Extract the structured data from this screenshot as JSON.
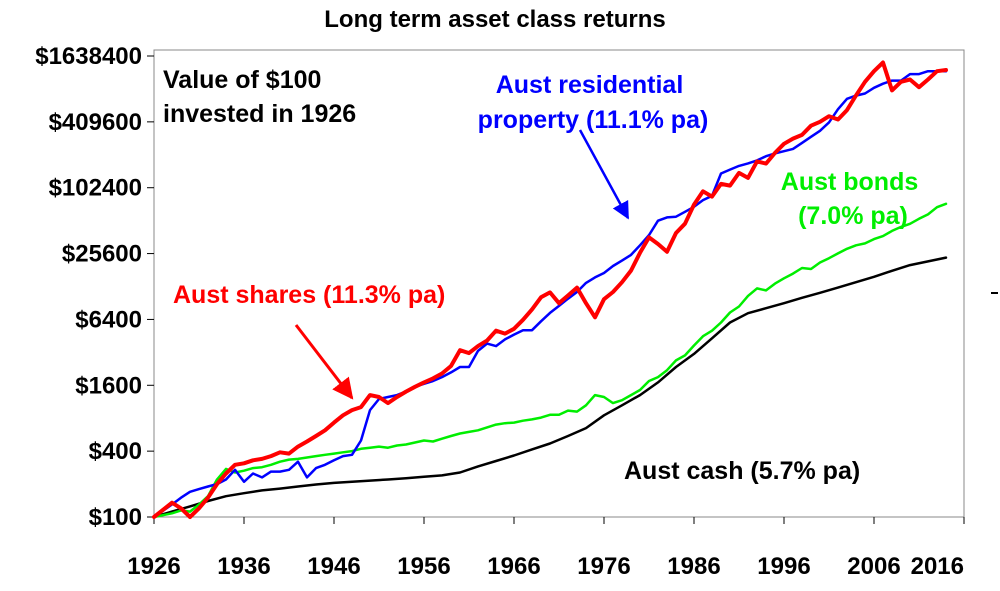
{
  "chart_data": {
    "type": "line",
    "title": "Long term asset class returns",
    "xlabel": "",
    "ylabel": "",
    "y_scale": "log",
    "xlim": [
      1926,
      2016
    ],
    "ylim": [
      100,
      1638400
    ],
    "x_ticks": [
      1926,
      1936,
      1946,
      1956,
      1966,
      1976,
      1986,
      1996,
      2006,
      2016
    ],
    "x_tick_labels": [
      "1926",
      "1936",
      "1946",
      "1956",
      "1966",
      "1976",
      "1986",
      "1996",
      "2006",
      "2016"
    ],
    "y_ticks": [
      100,
      400,
      1600,
      6400,
      25600,
      102400,
      409600,
      1638400
    ],
    "y_tick_labels": [
      "$100",
      "$400",
      "$1600",
      "$6400",
      "$25600",
      "$102400",
      "$409600",
      "$1638400"
    ],
    "grid": false,
    "legend": "none",
    "series": [
      {
        "name": "Aust shares (11.3% pa)",
        "color": "#ff0000",
        "x": [
          1926,
          1928,
          1929,
          1930,
          1931,
          1932,
          1933,
          1934,
          1935,
          1936,
          1937,
          1938,
          1939,
          1940,
          1941,
          1942,
          1943,
          1944,
          1945,
          1946,
          1947,
          1948,
          1949,
          1950,
          1951,
          1952,
          1953,
          1954,
          1955,
          1956,
          1957,
          1958,
          1959,
          1960,
          1961,
          1962,
          1963,
          1964,
          1965,
          1966,
          1967,
          1968,
          1969,
          1970,
          1971,
          1972,
          1973,
          1974,
          1975,
          1976,
          1977,
          1978,
          1979,
          1980,
          1981,
          1982,
          1983,
          1984,
          1985,
          1986,
          1987,
          1988,
          1989,
          1990,
          1991,
          1992,
          1993,
          1994,
          1995,
          1996,
          1997,
          1998,
          1999,
          2000,
          2001,
          2002,
          2003,
          2004,
          2005,
          2006,
          2007,
          2008,
          2009,
          2010,
          2011,
          2012,
          2013,
          2014
        ],
        "y": [
          100,
          135,
          120,
          100,
          120,
          150,
          200,
          250,
          300,
          310,
          330,
          340,
          360,
          390,
          380,
          440,
          490,
          550,
          620,
          730,
          850,
          950,
          1010,
          1300,
          1250,
          1100,
          1250,
          1400,
          1550,
          1700,
          1850,
          2050,
          2400,
          3350,
          3150,
          3650,
          4100,
          5050,
          4750,
          5250,
          6350,
          7900,
          10200,
          11300,
          9000,
          10600,
          12500,
          9000,
          6700,
          9800,
          11400,
          14000,
          17900,
          26000,
          36000,
          31300,
          26600,
          39500,
          48000,
          71700,
          95000,
          85000,
          111000,
          107000,
          140000,
          126000,
          178000,
          170000,
          213000,
          258000,
          288000,
          311000,
          378000,
          410000,
          461000,
          430000,
          525000,
          714000,
          952000,
          1190000,
          1430000,
          794000,
          952000,
          1000000,
          850000,
          1000000,
          1190000,
          1220000
        ]
      },
      {
        "name": "Aust residential property (11.1% pa)",
        "color": "#0000ff",
        "x": [
          1926,
          1928,
          1929,
          1930,
          1931,
          1932,
          1933,
          1934,
          1935,
          1936,
          1937,
          1938,
          1939,
          1940,
          1941,
          1942,
          1943,
          1944,
          1945,
          1946,
          1947,
          1948,
          1949,
          1950,
          1951,
          1952,
          1953,
          1954,
          1955,
          1956,
          1957,
          1958,
          1959,
          1960,
          1961,
          1962,
          1963,
          1964,
          1965,
          1966,
          1967,
          1968,
          1969,
          1970,
          1971,
          1972,
          1973,
          1974,
          1975,
          1976,
          1977,
          1978,
          1979,
          1980,
          1981,
          1982,
          1983,
          1984,
          1985,
          1986,
          1987,
          1988,
          1989,
          1990,
          1991,
          1992,
          1993,
          1994,
          1995,
          1996,
          1997,
          1998,
          1999,
          2000,
          2001,
          2002,
          2003,
          2004,
          2005,
          2006,
          2007,
          2008,
          2009,
          2010,
          2011,
          2012,
          2013,
          2014
        ],
        "y": [
          100,
          130,
          150,
          170,
          180,
          190,
          200,
          220,
          270,
          210,
          250,
          230,
          260,
          260,
          270,
          320,
          230,
          280,
          300,
          330,
          360,
          370,
          500,
          950,
          1200,
          1250,
          1300,
          1400,
          1550,
          1650,
          1750,
          1900,
          2100,
          2350,
          2350,
          3300,
          3850,
          3650,
          4200,
          4650,
          5100,
          5100,
          6150,
          7350,
          8500,
          9900,
          11400,
          13800,
          15500,
          17000,
          19700,
          22100,
          24900,
          30500,
          37800,
          51100,
          54800,
          55600,
          61700,
          68500,
          78900,
          86200,
          138000,
          150000,
          162000,
          171000,
          182000,
          199000,
          211000,
          221000,
          232000,
          263000,
          299000,
          339000,
          405000,
          535000,
          666000,
          712000,
          744000,
          839000,
          914000,
          977000,
          976000,
          1120000,
          1120000,
          1190000,
          1190000,
          1190000
        ]
      },
      {
        "name": "Aust bonds (7.0% pa)",
        "color": "#00ee00",
        "x": [
          1926,
          1928,
          1929,
          1930,
          1931,
          1932,
          1933,
          1934,
          1935,
          1936,
          1937,
          1938,
          1939,
          1940,
          1941,
          1942,
          1943,
          1944,
          1945,
          1946,
          1947,
          1948,
          1949,
          1950,
          1951,
          1952,
          1953,
          1954,
          1955,
          1956,
          1957,
          1958,
          1959,
          1960,
          1961,
          1962,
          1963,
          1964,
          1965,
          1966,
          1967,
          1968,
          1969,
          1970,
          1971,
          1972,
          1973,
          1974,
          1975,
          1976,
          1977,
          1978,
          1979,
          1980,
          1981,
          1982,
          1983,
          1984,
          1985,
          1986,
          1987,
          1988,
          1989,
          1990,
          1991,
          1992,
          1993,
          1994,
          1995,
          1996,
          1997,
          1998,
          1999,
          2000,
          2001,
          2002,
          2003,
          2004,
          2005,
          2006,
          2007,
          2008,
          2009,
          2010,
          2011,
          2012,
          2013,
          2014
        ],
        "y": [
          100,
          108,
          115,
          112,
          130,
          155,
          220,
          275,
          255,
          265,
          280,
          285,
          300,
          320,
          335,
          340,
          350,
          360,
          370,
          380,
          390,
          400,
          420,
          430,
          440,
          430,
          450,
          460,
          480,
          500,
          490,
          520,
          550,
          580,
          600,
          620,
          660,
          700,
          720,
          730,
          760,
          780,
          810,
          860,
          860,
          940,
          920,
          1050,
          1300,
          1250,
          1100,
          1170,
          1300,
          1450,
          1750,
          1900,
          2200,
          2700,
          3000,
          3700,
          4500,
          5050,
          6000,
          7400,
          8400,
          10500,
          12300,
          11800,
          13600,
          15200,
          16800,
          18900,
          18500,
          21200,
          23200,
          25700,
          28300,
          30500,
          31700,
          34700,
          37000,
          41300,
          44900,
          47900,
          53200,
          58400,
          68000,
          73000
        ]
      },
      {
        "name": "Aust cash (5.7% pa)",
        "color": "#000000",
        "x": [
          1926,
          1928,
          1930,
          1932,
          1934,
          1936,
          1938,
          1940,
          1942,
          1944,
          1946,
          1948,
          1950,
          1952,
          1954,
          1956,
          1958,
          1960,
          1962,
          1964,
          1966,
          1968,
          1970,
          1972,
          1974,
          1976,
          1978,
          1980,
          1982,
          1984,
          1986,
          1988,
          1990,
          1992,
          1994,
          1996,
          1998,
          2000,
          2002,
          2004,
          2006,
          2008,
          2010,
          2012,
          2014
        ],
        "y": [
          100,
          112,
          125,
          140,
          155,
          165,
          175,
          182,
          190,
          198,
          205,
          210,
          215,
          220,
          226,
          233,
          240,
          255,
          290,
          325,
          365,
          415,
          470,
          550,
          650,
          850,
          1050,
          1300,
          1700,
          2350,
          3100,
          4300,
          6000,
          7300,
          8100,
          9000,
          10100,
          11200,
          12500,
          14000,
          15700,
          17800,
          20100,
          21700,
          23500
        ]
      }
    ],
    "annotations": [
      {
        "id": "note",
        "lines": [
          "Value of $100",
          "invested in 1926"
        ],
        "color": "#000000"
      },
      {
        "id": "property",
        "lines": [
          "Aust residential",
          "property (11.1% pa)"
        ],
        "color": "#0000ff"
      },
      {
        "id": "bonds",
        "lines": [
          "Aust bonds",
          "(7.0% pa)"
        ],
        "color": "#00ee00"
      },
      {
        "id": "shares",
        "lines": [
          "Aust shares (11.3% pa)"
        ],
        "color": "#ff0000"
      },
      {
        "id": "cash",
        "lines": [
          "Aust cash (5.7% pa)"
        ],
        "color": "#000000"
      }
    ]
  }
}
